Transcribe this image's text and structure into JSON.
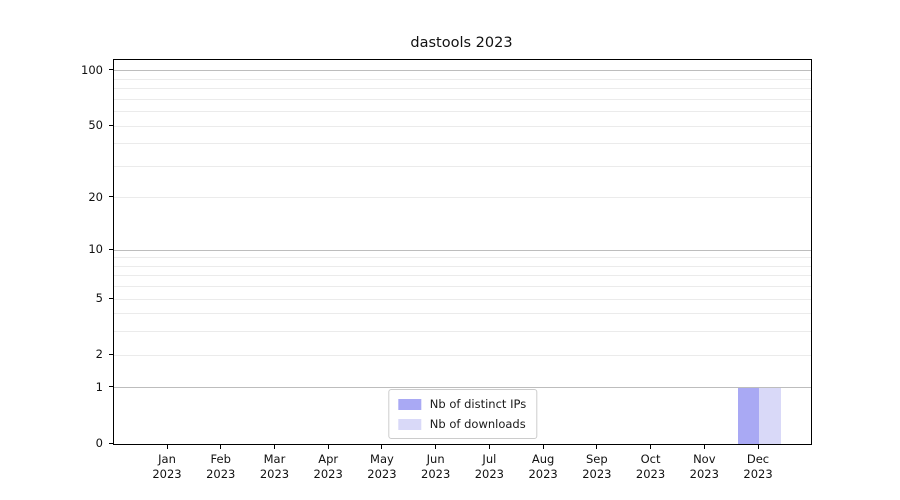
{
  "chart_data": {
    "type": "bar",
    "title": "dastools 2023",
    "categories": [
      "Jan 2023",
      "Feb 2023",
      "Mar 2023",
      "Apr 2023",
      "May 2023",
      "Jun 2023",
      "Jul 2023",
      "Aug 2023",
      "Sep 2023",
      "Oct 2023",
      "Nov 2023",
      "Dec 2023"
    ],
    "series": [
      {
        "name": "Nb of distinct IPs",
        "color": "#a9a9f4",
        "values": [
          0,
          0,
          0,
          0,
          0,
          0,
          0,
          0,
          0,
          0,
          0,
          1
        ]
      },
      {
        "name": "Nb of downloads",
        "color": "#d9d9f8",
        "values": [
          0,
          0,
          0,
          0,
          0,
          0,
          0,
          0,
          0,
          0,
          0,
          1
        ]
      }
    ],
    "xlabel": "",
    "ylabel": "",
    "yscale": "log1p",
    "ylim": [
      0,
      114.6
    ],
    "yticks": [
      0,
      1,
      2,
      5,
      10,
      20,
      50,
      100
    ],
    "grid_major": [
      1,
      10,
      100
    ],
    "grid_minor": [
      2,
      3,
      4,
      5,
      6,
      7,
      8,
      9,
      20,
      30,
      40,
      50,
      60,
      70,
      80,
      90
    ],
    "grid": "on",
    "legend_position": "lower center"
  },
  "style": {
    "background": "#ffffff",
    "spine_color": "#000000",
    "grid_major_color": "#bdbdbd",
    "grid_minor_color": "#ebebeb",
    "text_color": "#111111",
    "legend_border_color": "#cccccc"
  }
}
